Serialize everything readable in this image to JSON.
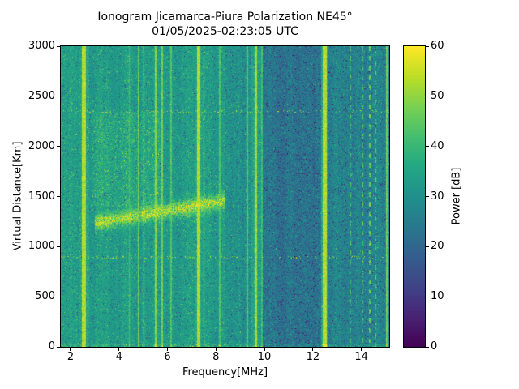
{
  "chart_data": {
    "type": "heatmap",
    "title": "Ionogram Jicamarca-Piura Polarization NE45°",
    "subtitle": "01/05/2025-02:23:05 UTC",
    "xlabel": "Frequency[MHz]",
    "ylabel": "Virtual Distance[Km]",
    "colorbar_label": "Power [dB]",
    "colormap": "viridis",
    "legend_position": "right-colorbar",
    "grid": false,
    "freq_range_mhz": [
      1.6,
      15.15
    ],
    "dist_range_km": [
      0,
      3000
    ],
    "power_range_db": [
      0,
      60
    ],
    "x_ticks": [
      2,
      4,
      6,
      8,
      10,
      12,
      14
    ],
    "y_ticks": [
      0,
      500,
      1000,
      1500,
      2000,
      2500,
      3000
    ],
    "colorbar_ticks": [
      0,
      10,
      20,
      30,
      40,
      50,
      60
    ],
    "background": {
      "mean_db": 34,
      "noise_db": 9
    },
    "dark_bands": [
      {
        "from_mhz": 8.35,
        "to_mhz": 9.45,
        "delta_db": -4,
        "extra_noise_db": 5
      },
      {
        "from_mhz": 9.9,
        "to_mhz": 12.35,
        "delta_db": -11,
        "extra_noise_db": 9
      },
      {
        "from_mhz": 12.62,
        "to_mhz": 15.15,
        "delta_db": -7,
        "extra_noise_db": 8
      }
    ],
    "interference_lines": [
      {
        "freq_mhz": 2.55,
        "width_mhz": 0.16,
        "power_db": 58,
        "dashed": false
      },
      {
        "freq_mhz": 2.72,
        "width_mhz": 0.05,
        "power_db": 49,
        "dashed": false
      },
      {
        "freq_mhz": 4.42,
        "width_mhz": 0.04,
        "power_db": 46,
        "dashed": false
      },
      {
        "freq_mhz": 4.8,
        "width_mhz": 0.05,
        "power_db": 52,
        "dashed": false
      },
      {
        "freq_mhz": 5.02,
        "width_mhz": 0.04,
        "power_db": 50,
        "dashed": false
      },
      {
        "freq_mhz": 5.52,
        "width_mhz": 0.06,
        "power_db": 54,
        "dashed": false
      },
      {
        "freq_mhz": 5.78,
        "width_mhz": 0.05,
        "power_db": 52,
        "dashed": false
      },
      {
        "freq_mhz": 6.15,
        "width_mhz": 0.04,
        "power_db": 48,
        "dashed": false
      },
      {
        "freq_mhz": 7.28,
        "width_mhz": 0.15,
        "power_db": 58,
        "dashed": false
      },
      {
        "freq_mhz": 7.5,
        "width_mhz": 0.05,
        "power_db": 50,
        "dashed": false
      },
      {
        "freq_mhz": 8.15,
        "width_mhz": 0.05,
        "power_db": 48,
        "dashed": false
      },
      {
        "freq_mhz": 9.3,
        "width_mhz": 0.05,
        "power_db": 48,
        "dashed": false
      },
      {
        "freq_mhz": 9.65,
        "width_mhz": 0.09,
        "power_db": 56,
        "dashed": false
      },
      {
        "freq_mhz": 9.9,
        "width_mhz": 0.04,
        "power_db": 46,
        "dashed": false
      },
      {
        "freq_mhz": 12.48,
        "width_mhz": 0.16,
        "power_db": 58,
        "dashed": false
      },
      {
        "freq_mhz": 13.55,
        "width_mhz": 0.04,
        "power_db": 48,
        "dashed": true
      },
      {
        "freq_mhz": 14.05,
        "width_mhz": 0.04,
        "power_db": 50,
        "dashed": true
      },
      {
        "freq_mhz": 14.35,
        "width_mhz": 0.05,
        "power_db": 52,
        "dashed": true
      },
      {
        "freq_mhz": 14.6,
        "width_mhz": 0.04,
        "power_db": 50,
        "dashed": true
      },
      {
        "freq_mhz": 15.05,
        "width_mhz": 0.05,
        "power_db": 52,
        "dashed": false
      }
    ],
    "echo_trace": {
      "from_mhz": 3.0,
      "to_mhz": 8.4,
      "start_km": 1240,
      "end_km": 1460,
      "half_width_km": 55,
      "boost_db": 20
    },
    "diffuse_spread": {
      "from_mhz": 2.9,
      "to_mhz": 5.8,
      "from_km": 1400,
      "to_km": 2350,
      "boost_db": 5
    },
    "dotted_range_lines_km": [
      900,
      2350
    ],
    "ground_clutter": {
      "max_km": 40,
      "boost_db": 13
    }
  }
}
